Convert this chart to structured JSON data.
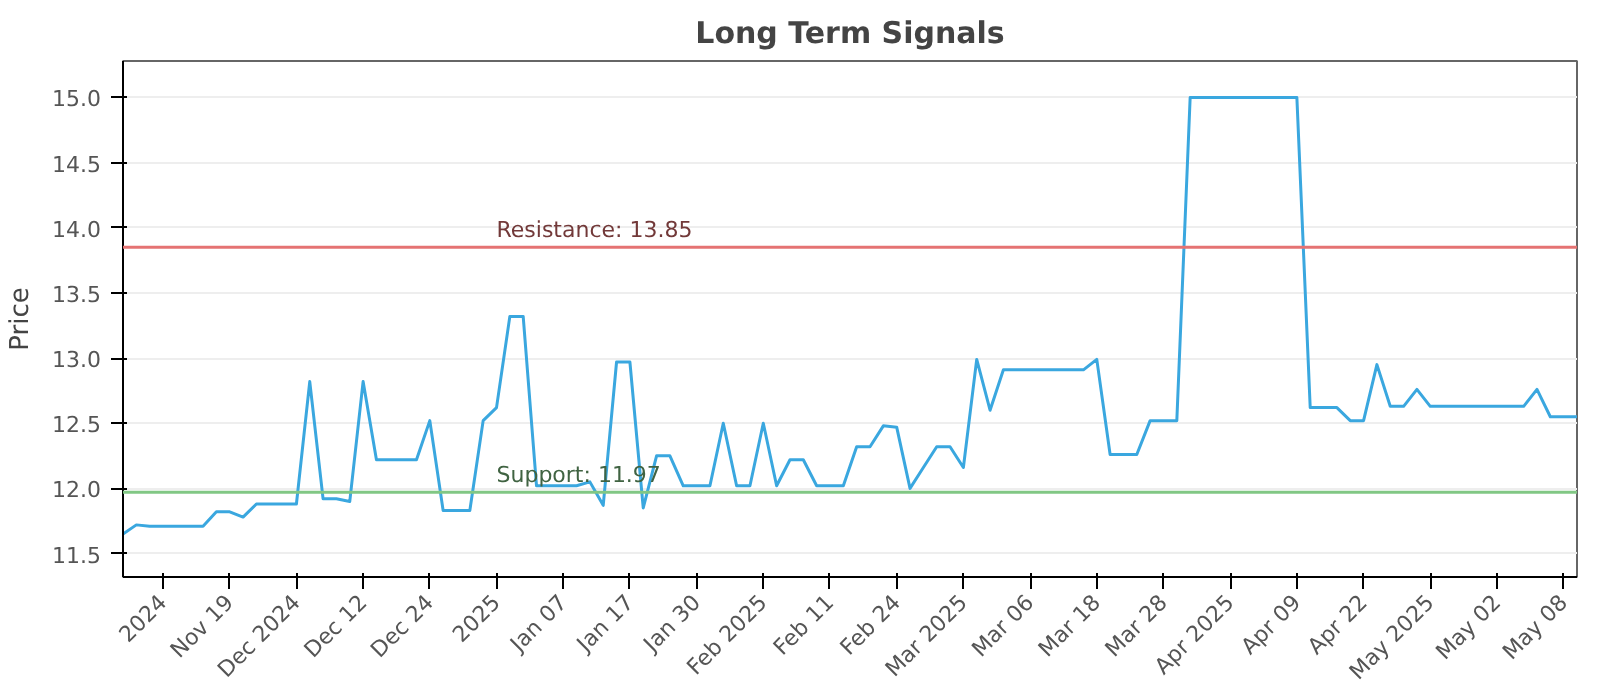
{
  "chart_data": {
    "type": "line",
    "title": "Long Term Signals",
    "ylabel": "Price",
    "categories": [
      null,
      null,
      null,
      "2024",
      null,
      null,
      null,
      null,
      "Nov 19",
      null,
      null,
      null,
      null,
      "Dec 2024",
      null,
      null,
      null,
      null,
      "Dec 12",
      null,
      null,
      null,
      null,
      "Dec 24",
      null,
      null,
      null,
      null,
      "2025",
      null,
      null,
      null,
      null,
      "Jan 07",
      null,
      null,
      null,
      null,
      "Jan 17",
      null,
      null,
      null,
      null,
      "Jan 30",
      null,
      null,
      null,
      null,
      "Feb 2025",
      null,
      null,
      null,
      null,
      "Feb 11",
      null,
      null,
      null,
      null,
      "Feb 24",
      null,
      null,
      null,
      null,
      "Mar 2025",
      null,
      null,
      null,
      null,
      "Mar 06",
      null,
      null,
      null,
      null,
      "Mar 18",
      null,
      null,
      null,
      null,
      "Mar 28",
      null,
      null,
      null,
      null,
      "Apr 2025",
      null,
      null,
      null,
      null,
      "Apr 09",
      null,
      null,
      null,
      null,
      "Apr 22",
      null,
      null,
      null,
      null,
      "May 2025",
      null,
      null,
      null,
      null,
      "May 02",
      null,
      null,
      null,
      null,
      "May 08",
      null
    ],
    "series": [
      {
        "color": "#3aa7df",
        "values": [
          11.65,
          11.72,
          11.71,
          11.71,
          11.71,
          11.71,
          11.71,
          11.82,
          11.82,
          11.78,
          11.88,
          11.88,
          11.88,
          11.88,
          12.82,
          11.92,
          11.92,
          11.9,
          12.82,
          12.22,
          12.22,
          12.22,
          12.22,
          12.52,
          11.83,
          11.83,
          11.83,
          12.52,
          12.62,
          13.32,
          13.32,
          12.02,
          12.02,
          12.02,
          12.02,
          12.05,
          11.87,
          12.97,
          12.97,
          11.85,
          12.25,
          12.25,
          12.02,
          12.02,
          12.02,
          12.5,
          12.02,
          12.02,
          12.5,
          12.02,
          12.22,
          12.22,
          12.02,
          12.02,
          12.02,
          12.32,
          12.32,
          12.48,
          12.47,
          12.0,
          12.16,
          12.32,
          12.32,
          12.16,
          12.99,
          12.6,
          12.91,
          12.91,
          12.91,
          12.91,
          12.91,
          12.91,
          12.91,
          12.99,
          12.26,
          12.26,
          12.26,
          12.52,
          12.52,
          12.52,
          15.0,
          15.0,
          15.0,
          15.0,
          15.0,
          15.0,
          15.0,
          15.0,
          15.0,
          12.62,
          12.62,
          12.62,
          12.52,
          12.52,
          12.95,
          12.63,
          12.63,
          12.76,
          12.63,
          12.63,
          12.63,
          12.63,
          12.63,
          12.63,
          12.63,
          12.63,
          12.76,
          12.55,
          12.55,
          12.55
        ]
      }
    ],
    "ylim": [
      11.32,
      15.28
    ],
    "yticks": [
      {
        "value": 11.5,
        "label": "11.5"
      },
      {
        "value": 12.0,
        "label": "12.0"
      },
      {
        "value": 12.5,
        "label": "12.5"
      },
      {
        "value": 13.0,
        "label": "13.0"
      },
      {
        "value": 13.5,
        "label": "13.5"
      },
      {
        "value": 14.0,
        "label": "14.0"
      },
      {
        "value": 14.5,
        "label": "14.5"
      },
      {
        "value": 15.0,
        "label": "15.0"
      }
    ],
    "grid": "y",
    "marker": "none",
    "line_style": "solid",
    "ref_lines": [
      {
        "axis": "y",
        "value": 13.85,
        "label": "Resistance: 13.85",
        "color": "#e57373"
      },
      {
        "axis": "y",
        "value": 11.97,
        "label": "Support: 11.97",
        "color": "#81c784"
      }
    ]
  }
}
